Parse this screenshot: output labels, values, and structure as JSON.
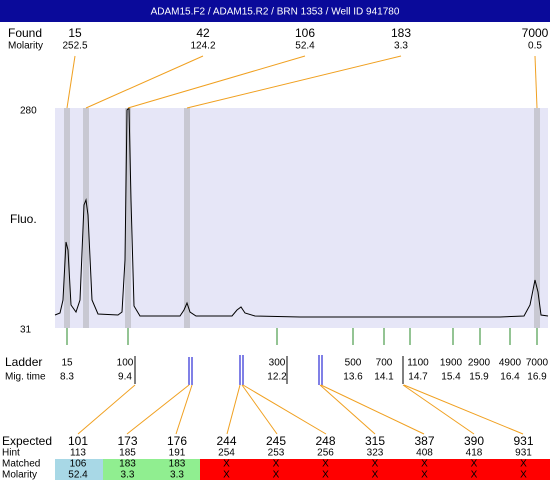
{
  "header": {
    "title": "ADAM15.F2 / ADAM15.R2 / BRN 1353 / Well ID 941780"
  },
  "found": {
    "label": "Found",
    "sublabel": "Molarity",
    "peaks": [
      {
        "size": "15",
        "molarity": "252.5"
      },
      {
        "size": "42",
        "molarity": "124.2"
      },
      {
        "size": "106",
        "molarity": "52.4"
      },
      {
        "size": "183",
        "molarity": "3.3"
      },
      {
        "size": "7000",
        "molarity": "0.5"
      }
    ]
  },
  "plot": {
    "y_top": "280",
    "y_bottom": "31",
    "y_label": "Fluo."
  },
  "ladder": {
    "label": "Ladder",
    "sublabel": "Mig. time",
    "entries": [
      {
        "size": "15",
        "time": "8.3"
      },
      {
        "size": "100",
        "time": "9.4"
      },
      {
        "size": "300",
        "time": "12.2"
      },
      {
        "size": "500",
        "time": "13.6"
      },
      {
        "size": "700",
        "time": "14.1"
      },
      {
        "size": "1100",
        "time": "14.7"
      },
      {
        "size": "1900",
        "time": "15.4"
      },
      {
        "size": "2900",
        "time": "15.9"
      },
      {
        "size": "4900",
        "time": "16.4"
      },
      {
        "size": "7000",
        "time": "16.9"
      }
    ]
  },
  "expected": {
    "labels": [
      "Expected",
      "Hint",
      "Matched",
      "Molarity"
    ],
    "columns": [
      {
        "expected": "101",
        "hint": "113",
        "matched": "106",
        "molarity": "52.4"
      },
      {
        "expected": "173",
        "hint": "185",
        "matched": "183",
        "molarity": "3.3"
      },
      {
        "expected": "176",
        "hint": "191",
        "matched": "183",
        "molarity": "3.3"
      },
      {
        "expected": "244",
        "hint": "254",
        "matched": "X",
        "molarity": "X"
      },
      {
        "expected": "245",
        "hint": "253",
        "matched": "X",
        "molarity": "X"
      },
      {
        "expected": "248",
        "hint": "256",
        "matched": "X",
        "molarity": "X"
      },
      {
        "expected": "315",
        "hint": "323",
        "matched": "X",
        "molarity": "X"
      },
      {
        "expected": "387",
        "hint": "408",
        "matched": "X",
        "molarity": "X"
      },
      {
        "expected": "390",
        "hint": "418",
        "matched": "X",
        "molarity": "X"
      },
      {
        "expected": "931",
        "hint": "931",
        "matched": "X",
        "molarity": "X"
      }
    ]
  }
}
